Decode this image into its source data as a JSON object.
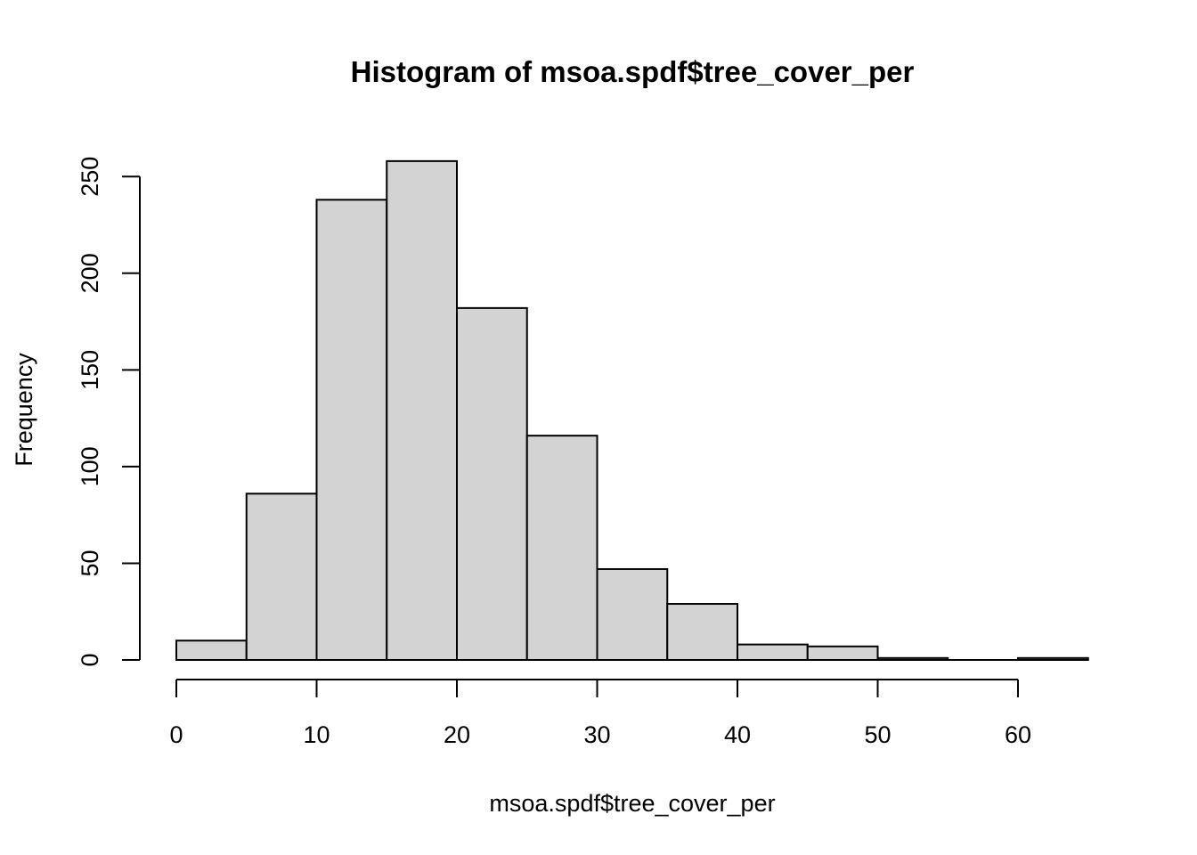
{
  "chart_data": {
    "type": "bar",
    "histogram": true,
    "title": "Histogram of msoa.spdf$tree_cover_per",
    "xlabel": "msoa.spdf$tree_cover_per",
    "ylabel": "Frequency",
    "bins": [
      {
        "start": 0,
        "end": 5,
        "count": 10
      },
      {
        "start": 5,
        "end": 10,
        "count": 86
      },
      {
        "start": 10,
        "end": 15,
        "count": 238
      },
      {
        "start": 15,
        "end": 20,
        "count": 258
      },
      {
        "start": 20,
        "end": 25,
        "count": 182
      },
      {
        "start": 25,
        "end": 30,
        "count": 116
      },
      {
        "start": 30,
        "end": 35,
        "count": 47
      },
      {
        "start": 35,
        "end": 40,
        "count": 29
      },
      {
        "start": 40,
        "end": 45,
        "count": 8
      },
      {
        "start": 45,
        "end": 50,
        "count": 7
      },
      {
        "start": 50,
        "end": 55,
        "count": 1
      },
      {
        "start": 55,
        "end": 60,
        "count": 0
      },
      {
        "start": 60,
        "end": 65,
        "count": 1
      }
    ],
    "xlim": [
      0,
      65
    ],
    "ylim": [
      0,
      260
    ],
    "x_ticks": [
      0,
      10,
      20,
      30,
      40,
      50,
      60
    ],
    "y_ticks": [
      0,
      50,
      100,
      150,
      200,
      250
    ],
    "x_tick_labels": [
      "0",
      "10",
      "20",
      "30",
      "40",
      "50",
      "60"
    ],
    "y_tick_labels": [
      "0",
      "50",
      "100",
      "150",
      "200",
      "250"
    ],
    "grid": false,
    "legend": "none",
    "bar_color": "#d3d3d3",
    "edge_color": "#000000"
  }
}
